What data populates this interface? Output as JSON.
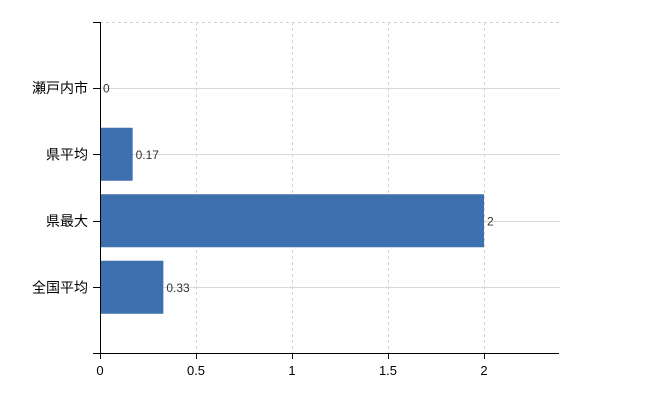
{
  "chart_data": {
    "type": "bar",
    "orientation": "horizontal",
    "title": "",
    "xlabel": "",
    "ylabel": "",
    "categories": [
      "瀬戸内市",
      "県平均",
      "県最大",
      "全国平均"
    ],
    "values": [
      0,
      0.17,
      2,
      0.33
    ],
    "value_labels": [
      "0",
      "0.17",
      "2",
      "0.33"
    ],
    "x_ticks": [
      0,
      0.5,
      1,
      1.5,
      2
    ],
    "x_tick_labels": [
      "0",
      "0.5",
      "1",
      "1.5",
      "2"
    ],
    "xlim": [
      0,
      2.4
    ],
    "grid": true,
    "legend": "none",
    "colors": {
      "bar": "#3e6fae",
      "h_gridline": "#d4dcd4",
      "v_gridline": "#d6d2d2",
      "top_border": "#d6d0d0",
      "axis": "#000000",
      "category_label": "#000000",
      "tick_label": "#000000",
      "value_label": "#333333",
      "background": "#ffffff"
    }
  }
}
